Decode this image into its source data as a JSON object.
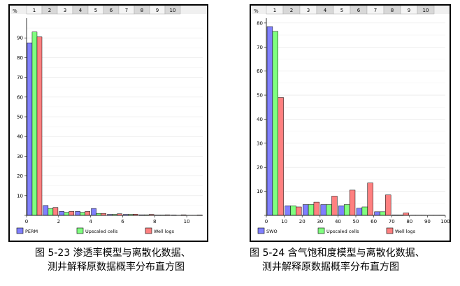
{
  "chart_data": [
    {
      "type": "bar",
      "ylabel": "%",
      "xlim": [
        0,
        11
      ],
      "ylim": [
        0,
        100
      ],
      "xticks": [
        0,
        2,
        4,
        6,
        8,
        10
      ],
      "yticks": [
        0,
        10,
        20,
        30,
        40,
        50,
        60,
        70,
        80,
        90
      ],
      "bin_width": 1,
      "bin_starts": [
        0,
        1,
        2,
        3,
        4,
        5,
        6,
        7,
        8,
        9,
        10
      ],
      "top_ruler": [
        "1",
        "2",
        "3",
        "4",
        "5",
        "6",
        "7",
        "8",
        "9",
        "10"
      ],
      "series": [
        {
          "name": "PERM",
          "color": "#8080ff",
          "values": [
            87.5,
            5,
            2,
            2,
            3.5,
            0.5,
            0.5,
            0.3,
            0.2,
            0.2,
            0.1
          ]
        },
        {
          "name": "Upscaled cells",
          "color": "#80ff80",
          "values": [
            93,
            3.5,
            1.5,
            1.5,
            1,
            0.5,
            0.5,
            0.3,
            0.2,
            0.1,
            0.1
          ]
        },
        {
          "name": "Well logs",
          "color": "#ff8080",
          "values": [
            90.5,
            4,
            2,
            2,
            1,
            0.8,
            0.6,
            0.5,
            0.3,
            0.3,
            0.2
          ]
        }
      ],
      "legend_position": "bottom",
      "caption": [
        "图 5-23 渗透率模型与离散化数据、",
        "测井解释原数据概率分布直方图"
      ]
    },
    {
      "type": "bar",
      "ylabel": "%",
      "xlim": [
        0,
        100
      ],
      "ylim": [
        0,
        82
      ],
      "xticks": [
        0,
        10,
        20,
        30,
        40,
        50,
        60,
        70,
        80,
        90,
        100
      ],
      "yticks": [
        0,
        10,
        20,
        30,
        40,
        50,
        60,
        70,
        80
      ],
      "bin_width": 10,
      "bin_starts": [
        0,
        10,
        20,
        30,
        40,
        50,
        60,
        70,
        80,
        90
      ],
      "top_ruler": [
        "1",
        "2",
        "3",
        "4",
        "5",
        "6",
        "7",
        "8",
        "9",
        "10"
      ],
      "series": [
        {
          "name": "SWO",
          "color": "#8080ff",
          "values": [
            78.5,
            4,
            4.5,
            4.5,
            4,
            3,
            1.5,
            0.2,
            0.1,
            0.1
          ]
        },
        {
          "name": "Upscaled cells",
          "color": "#80ff80",
          "values": [
            76.5,
            4,
            4.5,
            4.5,
            4.5,
            3.5,
            1.5,
            0.2,
            0.1,
            0.1
          ]
        },
        {
          "name": "Well logs",
          "color": "#ff8080",
          "values": [
            49,
            3.5,
            5.5,
            8,
            10.5,
            13.5,
            8.5,
            1,
            0.1,
            0.1
          ]
        }
      ],
      "legend_position": "bottom",
      "caption": [
        "图 5-24 含气饱和度模型与离散化数据、",
        "测井解释原数据概率分布直方图"
      ]
    }
  ]
}
